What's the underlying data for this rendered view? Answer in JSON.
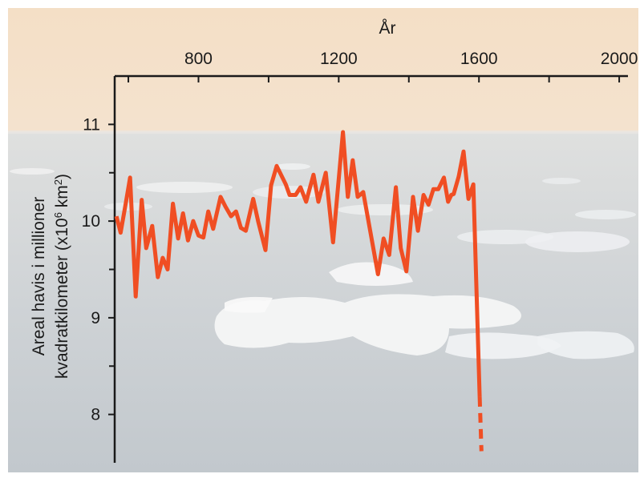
{
  "chart_data": {
    "type": "line",
    "title": "",
    "xlabel": "År",
    "ylabel_line1": "Areal havis i millioner",
    "ylabel_line2_main": "kvadratkilometer (x10",
    "ylabel_line2_sup": "6",
    "ylabel_line2_end": " km",
    "ylabel_line2_sup2": "2",
    "ylabel_line2_close": ")",
    "x_axis_position": "top",
    "xlim": [
      561,
      2025
    ],
    "ylim": [
      7.5,
      11.5
    ],
    "x_ticks": [
      800,
      1200,
      1600,
      2000
    ],
    "x_tick_labels": [
      "800",
      "1200",
      "1600",
      "2000"
    ],
    "x_minor_ticks": [
      600,
      1000,
      1400,
      1800
    ],
    "y_ticks": [
      8,
      9,
      10,
      11
    ],
    "y_tick_labels": [
      "8",
      "9",
      "10",
      "11"
    ],
    "grid": false,
    "background": "photo of sea ice floating on calm ocean at dusk",
    "series": [
      {
        "color": "#f04e23",
        "style": "solid",
        "points": [
          [
            566,
            10.05
          ],
          [
            578,
            9.88
          ],
          [
            591,
            10.15
          ],
          [
            605,
            10.45
          ],
          [
            621,
            9.22
          ],
          [
            638,
            10.22
          ],
          [
            651,
            9.72
          ],
          [
            668,
            9.95
          ],
          [
            684,
            9.42
          ],
          [
            698,
            9.62
          ],
          [
            712,
            9.5
          ],
          [
            727,
            10.18
          ],
          [
            742,
            9.82
          ],
          [
            756,
            10.08
          ],
          [
            770,
            9.8
          ],
          [
            785,
            10.0
          ],
          [
            800,
            9.85
          ],
          [
            814,
            9.83
          ],
          [
            828,
            10.1
          ],
          [
            842,
            9.92
          ],
          [
            863,
            10.25
          ],
          [
            877,
            10.15
          ],
          [
            893,
            10.05
          ],
          [
            907,
            10.1
          ],
          [
            921,
            9.93
          ],
          [
            935,
            9.9
          ],
          [
            956,
            10.23
          ],
          [
            970,
            10.0
          ],
          [
            991,
            9.7
          ],
          [
            1007,
            10.37
          ],
          [
            1023,
            10.57
          ],
          [
            1049,
            10.38
          ],
          [
            1060,
            10.27
          ],
          [
            1077,
            10.27
          ],
          [
            1091,
            10.35
          ],
          [
            1107,
            10.2
          ],
          [
            1128,
            10.48
          ],
          [
            1142,
            10.2
          ],
          [
            1163,
            10.5
          ],
          [
            1184,
            9.78
          ],
          [
            1212,
            10.92
          ],
          [
            1226,
            10.25
          ],
          [
            1240,
            10.63
          ],
          [
            1254,
            10.25
          ],
          [
            1270,
            10.3
          ],
          [
            1312,
            9.45
          ],
          [
            1328,
            9.82
          ],
          [
            1344,
            9.65
          ],
          [
            1363,
            10.35
          ],
          [
            1377,
            9.72
          ],
          [
            1393,
            9.48
          ],
          [
            1412,
            10.25
          ],
          [
            1426,
            9.9
          ],
          [
            1442,
            10.27
          ],
          [
            1456,
            10.17
          ],
          [
            1470,
            10.33
          ],
          [
            1484,
            10.33
          ],
          [
            1500,
            10.45
          ],
          [
            1512,
            10.2
          ],
          [
            1521,
            10.27
          ],
          [
            1528,
            10.28
          ],
          [
            1542,
            10.46
          ],
          [
            1556,
            10.72
          ],
          [
            1570,
            10.23
          ],
          [
            1584,
            10.38
          ],
          [
            1602,
            8.18
          ]
        ]
      },
      {
        "color": "#f04e23",
        "style": "dashed",
        "points": [
          [
            1602,
            8.18
          ],
          [
            1607,
            7.62
          ]
        ]
      }
    ]
  }
}
